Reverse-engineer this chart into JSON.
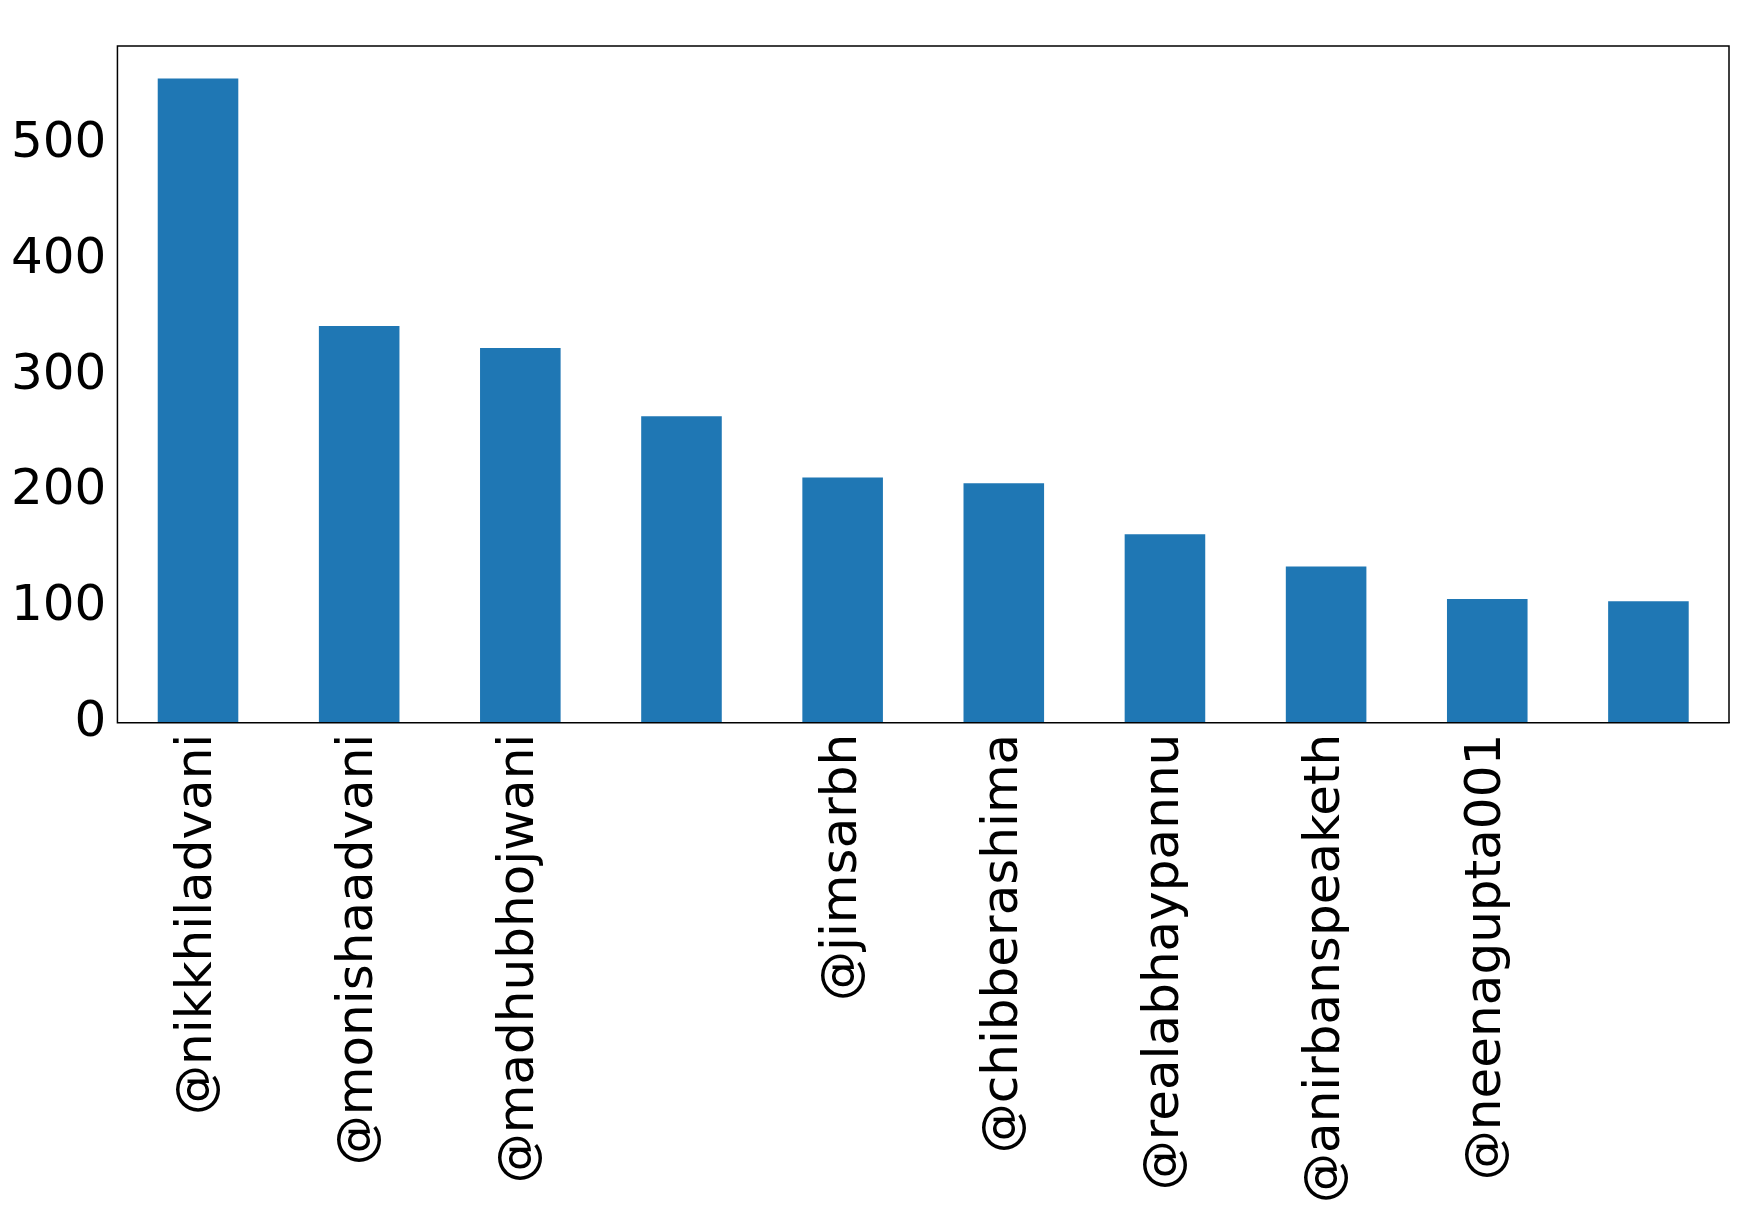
{
  "chart_data": {
    "type": "bar",
    "categories": [
      "@nikkhiladvani",
      "@monishaadvani",
      "@madhubhojwani",
      null,
      "@jimsarbh",
      "@chibberashima",
      "@realabhaypannu",
      "@anirbanspeaketh",
      "@neenagupta001",
      null
    ],
    "values": [
      557,
      343,
      324,
      265,
      212,
      207,
      163,
      135,
      107,
      105
    ],
    "color": "#1f77b4",
    "ylim": [
      0,
      585
    ],
    "yticks": [
      0,
      100,
      200,
      300,
      400,
      500
    ],
    "grid": false,
    "legend": false
  }
}
